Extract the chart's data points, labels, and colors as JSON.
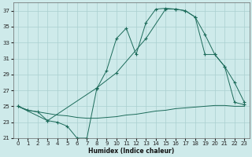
{
  "xlabel": "Humidex (Indice chaleur)",
  "background_color": "#ceeaea",
  "grid_color": "#aacfcf",
  "line_color": "#1c6b5a",
  "ylim": [
    21,
    38
  ],
  "xlim": [
    -0.5,
    23.5
  ],
  "yticks": [
    21,
    23,
    25,
    27,
    29,
    31,
    33,
    35,
    37
  ],
  "xticks": [
    0,
    1,
    2,
    3,
    4,
    5,
    6,
    7,
    8,
    9,
    10,
    11,
    12,
    13,
    14,
    15,
    16,
    17,
    18,
    19,
    20,
    21,
    22,
    23
  ],
  "series1_x": [
    0,
    1,
    2,
    3,
    4,
    5,
    6,
    7,
    8,
    9,
    10,
    11,
    12,
    13,
    14,
    15,
    16,
    17,
    18,
    19,
    20,
    21,
    22,
    23
  ],
  "series1_y": [
    25.0,
    24.5,
    24.3,
    23.2,
    23.0,
    22.5,
    21.0,
    21.0,
    27.2,
    29.5,
    33.5,
    34.8,
    31.5,
    35.5,
    37.2,
    37.3,
    37.2,
    37.0,
    36.2,
    34.0,
    31.5,
    30.0,
    28.0,
    25.5
  ],
  "series2_x": [
    0,
    3,
    8,
    10,
    13,
    15,
    16,
    17,
    18,
    19,
    20,
    21,
    22,
    23
  ],
  "series2_y": [
    25.0,
    23.2,
    27.3,
    29.2,
    33.5,
    37.2,
    37.2,
    37.0,
    36.2,
    31.5,
    31.5,
    30.0,
    25.5,
    25.2
  ],
  "series3_x": [
    0,
    1,
    2,
    3,
    4,
    5,
    6,
    7,
    8,
    9,
    10,
    11,
    12,
    13,
    14,
    15,
    16,
    17,
    18,
    19,
    20,
    21,
    22,
    23
  ],
  "series3_y": [
    25.0,
    24.5,
    24.3,
    24.1,
    23.9,
    23.8,
    23.6,
    23.5,
    23.5,
    23.6,
    23.7,
    23.9,
    24.0,
    24.2,
    24.4,
    24.5,
    24.7,
    24.8,
    24.9,
    25.0,
    25.1,
    25.1,
    25.0,
    25.0
  ]
}
